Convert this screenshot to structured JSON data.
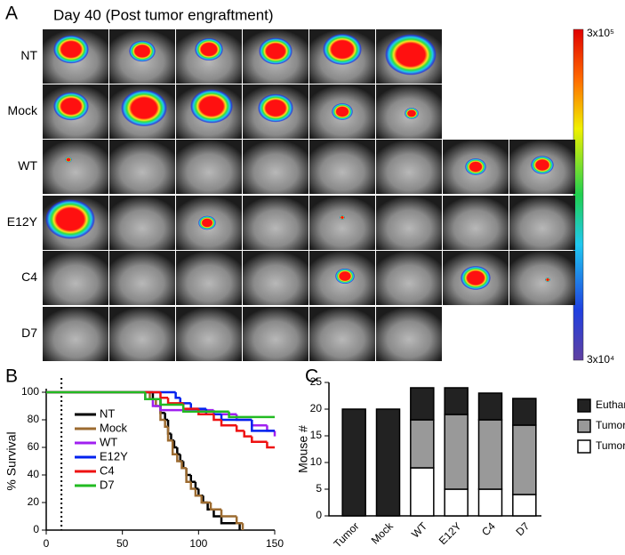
{
  "figure": {
    "panel_label": "A",
    "title": "Day 40 (Post tumor engraftment)",
    "rows": [
      "NT",
      "Mock",
      "WT",
      "E12Y",
      "C4",
      "D7"
    ],
    "colorbar": {
      "max_label": "3x10⁵",
      "min_label": "3x10⁴"
    }
  },
  "chart_data": [
    {
      "type": "line",
      "step": true,
      "panel_label": "B",
      "ylabel": "% Survival",
      "xlim": [
        0,
        150
      ],
      "xticks": [
        0,
        50,
        100,
        150
      ],
      "ylim": [
        0,
        100
      ],
      "yticks": [
        0,
        20,
        40,
        60,
        80,
        100
      ],
      "vline": 10,
      "legend": "center left",
      "series": [
        {
          "name": "NT",
          "color": "#000000",
          "x": [
            0,
            70,
            75,
            78,
            80,
            82,
            84,
            86,
            88,
            90,
            92,
            95,
            98,
            100,
            103,
            106,
            110,
            115,
            124,
            127
          ],
          "values": [
            100,
            95,
            85,
            80,
            70,
            65,
            60,
            55,
            50,
            45,
            40,
            35,
            30,
            25,
            20,
            15,
            10,
            5,
            5,
            0
          ]
        },
        {
          "name": "Mock",
          "color": "#9c6b30",
          "x": [
            0,
            68,
            72,
            75,
            78,
            80,
            83,
            86,
            89,
            92,
            95,
            98,
            102,
            108,
            115,
            125,
            129
          ],
          "values": [
            100,
            95,
            90,
            80,
            75,
            65,
            55,
            50,
            45,
            35,
            30,
            25,
            20,
            15,
            10,
            5,
            0
          ]
        },
        {
          "name": "WT",
          "color": "#a020f0",
          "x": [
            0,
            65,
            70,
            75,
            110,
            125,
            135,
            145,
            150
          ],
          "values": [
            100,
            95,
            90,
            87,
            84,
            80,
            76,
            72,
            68
          ]
        },
        {
          "name": "E12Y",
          "color": "#0022ee",
          "x": [
            0,
            85,
            88,
            95,
            105,
            115,
            135,
            150
          ],
          "values": [
            100,
            96,
            92,
            88,
            84,
            80,
            72,
            72
          ]
        },
        {
          "name": "C4",
          "color": "#ee1111",
          "x": [
            0,
            75,
            80,
            90,
            100,
            110,
            115,
            125,
            130,
            135,
            145,
            150
          ],
          "values": [
            100,
            96,
            92,
            88,
            84,
            80,
            76,
            72,
            68,
            64,
            60,
            60
          ]
        },
        {
          "name": "D7",
          "color": "#22bb22",
          "x": [
            0,
            65,
            75,
            90,
            120,
            150
          ],
          "values": [
            100,
            95,
            91,
            86,
            82,
            82
          ]
        }
      ]
    },
    {
      "type": "bar",
      "stacked": true,
      "panel_label": "C",
      "ylabel": "Mouse #",
      "categories": [
        "Tumor",
        "Mock",
        "WT",
        "E12Y",
        "C4",
        "D7"
      ],
      "ylim": [
        0,
        25
      ],
      "yticks": [
        0,
        5,
        10,
        15,
        20,
        25
      ],
      "series": [
        {
          "name": "Tumor Free",
          "color": "#ffffff",
          "values": [
            0,
            0,
            9,
            5,
            5,
            4
          ]
        },
        {
          "name": "Tumor Relapse",
          "color": "#999999",
          "values": [
            0,
            0,
            9,
            14,
            13,
            13
          ]
        },
        {
          "name": "Euthanized",
          "color": "#222222",
          "values": [
            20,
            20,
            6,
            5,
            5,
            5
          ]
        }
      ]
    }
  ]
}
